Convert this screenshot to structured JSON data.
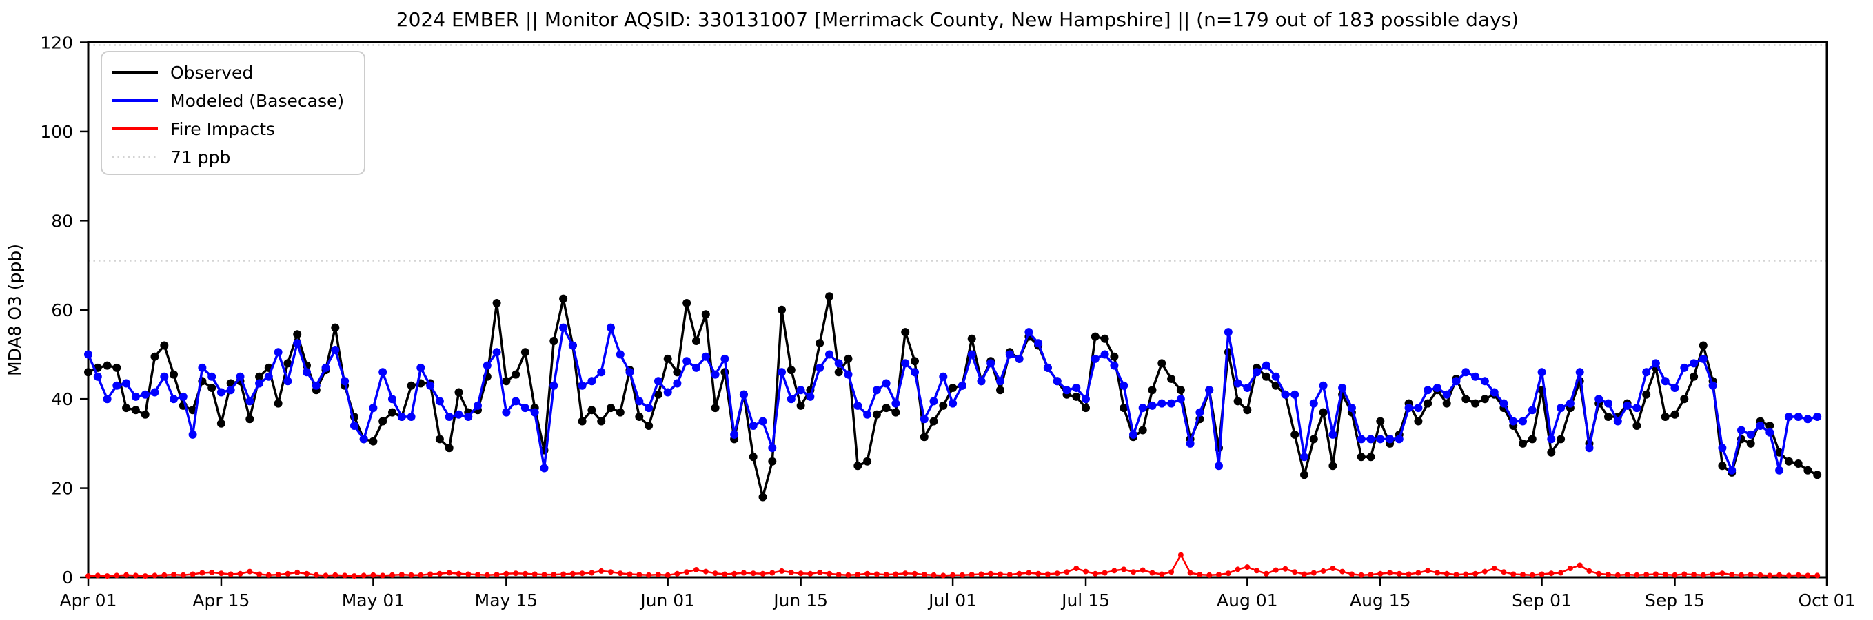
{
  "title": "2024 EMBER || Monitor AQSID: 330131007 [Merrimack County, New Hampshire] || (n=179 out of 183 possible days)",
  "axes": {
    "ylabel": "MDA8 O3 (ppb)",
    "ylim": [
      0,
      120
    ],
    "yticks": [
      0,
      20,
      40,
      60,
      80,
      100,
      120
    ],
    "xtick_labels": [
      "Apr 01",
      "Apr 15",
      "May 01",
      "May 15",
      "Jun 01",
      "Jun 15",
      "Jul 01",
      "Jul 15",
      "Aug 01",
      "Aug 15",
      "Sep 01",
      "Sep 15",
      "Oct 01"
    ],
    "xtick_days": [
      0,
      14,
      30,
      44,
      61,
      75,
      91,
      105,
      122,
      136,
      153,
      167,
      183
    ],
    "xlim_days": [
      0,
      183
    ]
  },
  "legend": {
    "items": [
      {
        "label": "Observed",
        "color": "#000000",
        "dash": "solid"
      },
      {
        "label": "Modeled (Basecase)",
        "color": "#0000ff",
        "dash": "solid"
      },
      {
        "label": "Fire Impacts",
        "color": "#ff0000",
        "dash": "solid"
      },
      {
        "label": "71 ppb",
        "color": "#d3d3d3",
        "dash": "dotted"
      }
    ]
  },
  "chart_data": {
    "type": "line",
    "x_unit": "days since Apr 01 (daily points, Apr 01 - Sep 30)",
    "title": "2024 EMBER || Monitor AQSID: 330131007 [Merrimack County, New Hampshire] || (n=179 out of 183 possible days)",
    "xlabel": "",
    "ylabel": "MDA8 O3 (ppb)",
    "ylim": [
      0,
      120
    ],
    "grid": false,
    "legend_position": "upper left",
    "reference_lines": [
      {
        "label": "71 ppb",
        "value": 71,
        "color": "#d3d3d3",
        "style": "dotted"
      },
      {
        "label": "",
        "value": 120,
        "color": "#d3d3d3",
        "style": "dotted",
        "note": "dotted line along top spine"
      }
    ],
    "series": [
      {
        "name": "Observed",
        "color": "#000000",
        "values": [
          46,
          47,
          47.5,
          47,
          38,
          37.5,
          36.5,
          49.5,
          52,
          45.5,
          38.5,
          37.5,
          44,
          42.5,
          34.5,
          43.5,
          44,
          35.5,
          45,
          47,
          39,
          48,
          54.5,
          47.5,
          42,
          46.5,
          56,
          43,
          36,
          31,
          30.5,
          35,
          37,
          36,
          43,
          43.5,
          43.5,
          31,
          29,
          41.5,
          37,
          37.5,
          45,
          61.5,
          44,
          45.5,
          50.5,
          38,
          28.5,
          53,
          62.5,
          52,
          35,
          37.5,
          35,
          38,
          37,
          46.5,
          36,
          34,
          41,
          49,
          46,
          61.5,
          53,
          59,
          38,
          46,
          31,
          41,
          27,
          18,
          26,
          60,
          46.5,
          38.5,
          42,
          52.5,
          63,
          46,
          49,
          25,
          26,
          36.5,
          38,
          37,
          55,
          48.5,
          31.5,
          35,
          38.5,
          42.5,
          43,
          53.5,
          44,
          48.5,
          42,
          50.5,
          49,
          54,
          52,
          47,
          44,
          41,
          40.5,
          38,
          54,
          53.5,
          49.5,
          38,
          31.5,
          33,
          42,
          48,
          44.5,
          42,
          31,
          35.5,
          42,
          29,
          50.5,
          39.5,
          37.5,
          47,
          45,
          43,
          41,
          32,
          23,
          31,
          37,
          25,
          41,
          37,
          27,
          27,
          35,
          30,
          32,
          39,
          35,
          39,
          42,
          39,
          44.5,
          40,
          39,
          40,
          41,
          38,
          34,
          30,
          31,
          42,
          28,
          31,
          38,
          44,
          30,
          39,
          36,
          36,
          39,
          34,
          41,
          47,
          36,
          36.5,
          40,
          45,
          52,
          44,
          25,
          23.5,
          31,
          30,
          35,
          34,
          28,
          26,
          25.5,
          24,
          23
        ]
      },
      {
        "name": "Modeled (Basecase)",
        "color": "#0000ff",
        "values": [
          50,
          45,
          40,
          43,
          43.5,
          40.5,
          41,
          41.5,
          45,
          40,
          40.5,
          32,
          47,
          45,
          41.5,
          42,
          45,
          39.5,
          43.5,
          45,
          50.5,
          44,
          52.5,
          46,
          43,
          47,
          51,
          44,
          34,
          31,
          38,
          46,
          40,
          36,
          36,
          47,
          43,
          39.5,
          36,
          36.5,
          36,
          38.5,
          47.5,
          50.5,
          37,
          39.5,
          38,
          37,
          24.5,
          43,
          56,
          52,
          43,
          44,
          46,
          56,
          50,
          46,
          39.5,
          38,
          44,
          41.5,
          43.5,
          48.5,
          47,
          49.5,
          45.5,
          49,
          32,
          41,
          34,
          35,
          29,
          46,
          40,
          42,
          40.5,
          47,
          50,
          48,
          45.5,
          38.5,
          36.5,
          42,
          43.5,
          39,
          48,
          46,
          35.5,
          39.5,
          45,
          39,
          43,
          50,
          44,
          48,
          44,
          50,
          49,
          55,
          52.5,
          47,
          44,
          42,
          42.5,
          40,
          49,
          50,
          47.5,
          43,
          32,
          38,
          38.5,
          39,
          39,
          40,
          30,
          37,
          42,
          25,
          55,
          43.5,
          42.5,
          46,
          47.5,
          45,
          41,
          41,
          27,
          39,
          43,
          32,
          42.5,
          38,
          31,
          31,
          31,
          31,
          31,
          38,
          38,
          42,
          42.5,
          41,
          44,
          46,
          45,
          44,
          41.5,
          39,
          35,
          35,
          37.5,
          46,
          31,
          38,
          39,
          46,
          29,
          40,
          39,
          35,
          38.5,
          38,
          46,
          48,
          44,
          42.5,
          47,
          48,
          49,
          43,
          29,
          24,
          33,
          32,
          34,
          32.5,
          24,
          36,
          36,
          35.5,
          36
        ]
      },
      {
        "name": "Fire Impacts",
        "color": "#ff0000",
        "values": [
          0.3,
          0.4,
          0.3,
          0.4,
          0.5,
          0.4,
          0.3,
          0.4,
          0.5,
          0.6,
          0.5,
          0.7,
          1.0,
          1.1,
          0.9,
          0.7,
          0.8,
          1.3,
          0.7,
          0.5,
          0.6,
          0.8,
          1.1,
          0.8,
          0.5,
          0.4,
          0.5,
          0.4,
          0.3,
          0.4,
          0.5,
          0.4,
          0.5,
          0.6,
          0.5,
          0.5,
          0.7,
          0.8,
          1.0,
          0.8,
          0.7,
          0.6,
          0.5,
          0.6,
          0.8,
          0.9,
          0.8,
          0.7,
          0.6,
          0.6,
          0.7,
          0.8,
          0.9,
          1.0,
          1.4,
          1.2,
          0.9,
          0.7,
          0.6,
          0.5,
          0.6,
          0.5,
          0.8,
          1.2,
          1.7,
          1.3,
          0.9,
          0.7,
          0.8,
          1.0,
          0.9,
          0.8,
          1.0,
          1.4,
          1.1,
          0.9,
          0.8,
          1.1,
          0.8,
          0.6,
          0.5,
          0.6,
          0.8,
          0.7,
          0.6,
          0.7,
          0.9,
          0.8,
          0.6,
          0.5,
          0.4,
          0.5,
          0.5,
          0.6,
          0.7,
          0.8,
          0.7,
          0.6,
          0.8,
          1.0,
          0.8,
          0.7,
          0.9,
          1.2,
          2.0,
          1.3,
          0.8,
          1.0,
          1.5,
          1.8,
          1.2,
          1.6,
          1.0,
          0.7,
          1.2,
          5.0,
          1.0,
          0.6,
          0.5,
          0.6,
          0.9,
          1.8,
          2.3,
          1.5,
          0.8,
          1.6,
          1.9,
          1.2,
          0.7,
          1.0,
          1.4,
          2.0,
          1.3,
          0.7,
          0.5,
          0.6,
          0.8,
          1.0,
          0.8,
          0.7,
          1.0,
          1.5,
          1.0,
          0.8,
          0.6,
          0.7,
          0.8,
          1.3,
          2.0,
          1.2,
          0.7,
          0.6,
          0.5,
          0.7,
          0.9,
          1.0,
          2.0,
          2.7,
          1.4,
          0.8,
          0.6,
          0.5,
          0.6,
          0.5,
          0.6,
          0.7,
          0.6,
          0.5,
          0.7,
          0.6,
          0.5,
          0.7,
          0.9,
          0.6,
          0.5,
          0.6,
          0.5,
          0.4,
          0.5,
          0.4,
          0.5,
          0.4,
          0.4
        ]
      }
    ]
  }
}
